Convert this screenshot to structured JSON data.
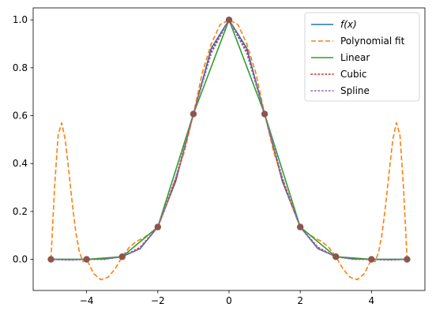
{
  "chart_data": {
    "type": "line",
    "title": "",
    "xlabel": "",
    "ylabel": "",
    "xlim": [
      -5.5,
      5.5
    ],
    "ylim": [
      -0.13,
      1.05
    ],
    "x_ticks": [
      -4,
      -2,
      0,
      2,
      4
    ],
    "x_tick_labels": [
      "−4",
      "−2",
      "0",
      "2",
      "4"
    ],
    "y_ticks": [
      0.0,
      0.2,
      0.4,
      0.6,
      0.8,
      1.0
    ],
    "y_tick_labels": [
      "0.0",
      "0.2",
      "0.4",
      "0.6",
      "0.8",
      "1.0"
    ],
    "grid": false,
    "legend_position": "top-right",
    "nodes": {
      "x": [
        -5,
        -4,
        -3,
        -2,
        -1,
        0,
        1,
        2,
        3,
        4,
        5
      ],
      "y": [
        0.0,
        0.0,
        0.011,
        0.135,
        0.607,
        1.0,
        0.607,
        0.135,
        0.011,
        0.0,
        0.0
      ],
      "color": "#8c564b"
    },
    "series": [
      {
        "name": "f(x)",
        "color": "#1f77b4",
        "style": "solid",
        "x": [
          -5,
          -4.5,
          -4,
          -3.5,
          -3,
          -2.5,
          -2,
          -1.5,
          -1,
          -0.5,
          0,
          0.5,
          1,
          1.5,
          2,
          2.5,
          3,
          3.5,
          4,
          4.5,
          5
        ],
        "y": [
          0.0,
          0.0,
          0.0,
          0.002,
          0.011,
          0.044,
          0.135,
          0.325,
          0.607,
          0.882,
          1.0,
          0.882,
          0.607,
          0.325,
          0.135,
          0.044,
          0.011,
          0.002,
          0.0,
          0.0,
          0.0
        ]
      },
      {
        "name": "Polynomial fit",
        "color": "#ff7f0e",
        "style": "dashed",
        "x": [
          -5,
          -4.9,
          -4.8,
          -4.7,
          -4.6,
          -4.5,
          -4.4,
          -4.3,
          -4.2,
          -4.1,
          -4,
          -3.8,
          -3.6,
          -3.4,
          -3.2,
          -3,
          -2.8,
          -2.6,
          -2.4,
          -2.2,
          -2,
          -1.75,
          -1.5,
          -1.25,
          -1,
          -0.75,
          -0.5,
          -0.25,
          0,
          0.25,
          0.5,
          0.75,
          1,
          1.25,
          1.5,
          1.75,
          2,
          2.2,
          2.4,
          2.6,
          2.8,
          3,
          3.2,
          3.4,
          3.6,
          3.8,
          4,
          4.1,
          4.2,
          4.3,
          4.4,
          4.5,
          4.6,
          4.7,
          4.8,
          4.9,
          5
        ],
        "y": [
          0.0,
          0.3,
          0.52,
          0.57,
          0.5,
          0.37,
          0.23,
          0.11,
          0.03,
          -0.01,
          0.0,
          -0.06,
          -0.085,
          -0.075,
          -0.04,
          0.011,
          0.05,
          0.075,
          0.09,
          0.11,
          0.135,
          0.23,
          0.34,
          0.45,
          0.607,
          0.78,
          0.9,
          0.98,
          1.0,
          0.98,
          0.9,
          0.78,
          0.607,
          0.45,
          0.34,
          0.23,
          0.135,
          0.11,
          0.09,
          0.075,
          0.05,
          0.011,
          -0.04,
          -0.075,
          -0.085,
          -0.06,
          0.0,
          -0.01,
          0.03,
          0.11,
          0.23,
          0.37,
          0.5,
          0.57,
          0.52,
          0.3,
          0.0
        ]
      },
      {
        "name": "Linear",
        "color": "#2ca02c",
        "style": "solid",
        "x": [
          -5,
          -4,
          -3,
          -2,
          -1,
          0,
          1,
          2,
          3,
          4,
          5
        ],
        "y": [
          0.0,
          0.0,
          0.011,
          0.135,
          0.607,
          1.0,
          0.607,
          0.135,
          0.011,
          0.0,
          0.0
        ]
      },
      {
        "name": "Cubic",
        "color": "#d62728",
        "style": "dotted",
        "x": [
          -5,
          -4.5,
          -4,
          -3.5,
          -3,
          -2.5,
          -2,
          -1.5,
          -1,
          -0.5,
          0,
          0.5,
          1,
          1.5,
          2,
          2.5,
          3,
          3.5,
          4,
          4.5,
          5
        ],
        "y": [
          0.0,
          -0.003,
          0.0,
          0.0,
          0.011,
          0.05,
          0.135,
          0.33,
          0.607,
          0.87,
          1.0,
          0.87,
          0.607,
          0.33,
          0.135,
          0.05,
          0.011,
          0.0,
          0.0,
          -0.003,
          0.0
        ]
      },
      {
        "name": "Spline",
        "color": "#9467bd",
        "style": "dotted",
        "x": [
          -5,
          -4.5,
          -4,
          -3.5,
          -3,
          -2.5,
          -2,
          -1.5,
          -1,
          -0.5,
          0,
          0.5,
          1,
          1.5,
          2,
          2.5,
          3,
          3.5,
          4,
          4.5,
          5
        ],
        "y": [
          0.0,
          -0.002,
          0.0,
          0.0,
          0.011,
          0.045,
          0.135,
          0.34,
          0.607,
          0.86,
          1.0,
          0.86,
          0.607,
          0.34,
          0.135,
          0.045,
          0.011,
          0.0,
          0.0,
          -0.002,
          0.0
        ]
      }
    ]
  }
}
